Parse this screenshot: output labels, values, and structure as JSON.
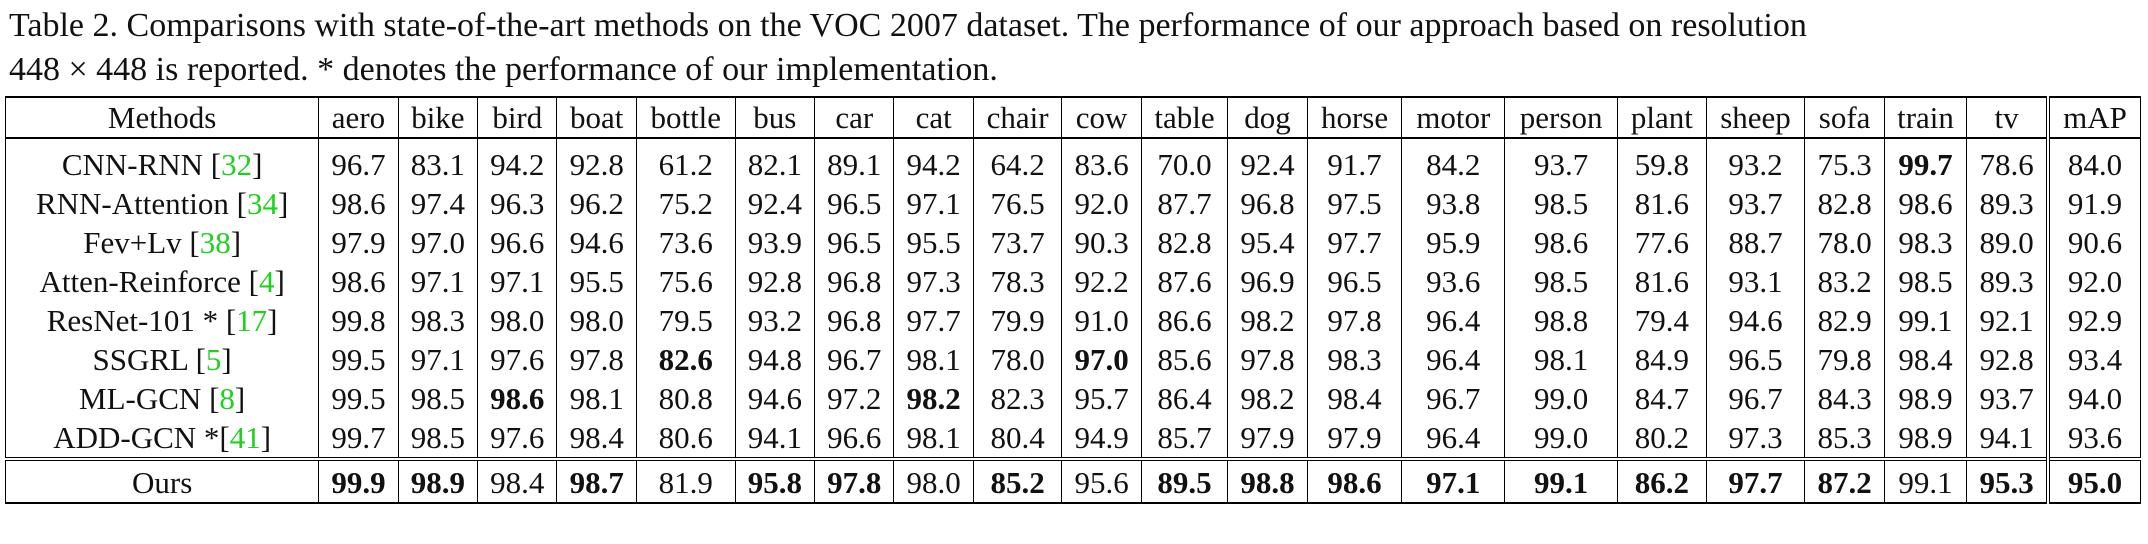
{
  "caption": {
    "line1": "Table 2. Comparisons with state-of-the-art methods on the VOC 2007 dataset.  The performance of our approach based on resolution",
    "line2": "448 × 448 is reported. * denotes the performance of our implementation."
  },
  "headers": [
    "Methods",
    "aero",
    "bike",
    "bird",
    "boat",
    "bottle",
    "bus",
    "car",
    "cat",
    "chair",
    "cow",
    "table",
    "dog",
    "horse",
    "motor",
    "person",
    "plant",
    "sheep",
    "sofa",
    "train",
    "tv",
    "mAP"
  ],
  "rows": [
    {
      "method": "CNN-RNN ",
      "ref": "32",
      "values": [
        "96.7",
        "83.1",
        "94.2",
        "92.8",
        "61.2",
        "82.1",
        "89.1",
        "94.2",
        "64.2",
        "83.6",
        "70.0",
        "92.4",
        "91.7",
        "84.2",
        "93.7",
        "59.8",
        "93.2",
        "75.3",
        "99.7",
        "78.6",
        "84.0"
      ],
      "bold": [
        18
      ]
    },
    {
      "method": "RNN-Attention ",
      "ref": "34",
      "values": [
        "98.6",
        "97.4",
        "96.3",
        "96.2",
        "75.2",
        "92.4",
        "96.5",
        "97.1",
        "76.5",
        "92.0",
        "87.7",
        "96.8",
        "97.5",
        "93.8",
        "98.5",
        "81.6",
        "93.7",
        "82.8",
        "98.6",
        "89.3",
        "91.9"
      ],
      "bold": []
    },
    {
      "method": "Fev+Lv ",
      "ref": "38",
      "values": [
        "97.9",
        "97.0",
        "96.6",
        "94.6",
        "73.6",
        "93.9",
        "96.5",
        "95.5",
        "73.7",
        "90.3",
        "82.8",
        "95.4",
        "97.7",
        "95.9",
        "98.6",
        "77.6",
        "88.7",
        "78.0",
        "98.3",
        "89.0",
        "90.6"
      ],
      "bold": []
    },
    {
      "method": "Atten-Reinforce ",
      "ref": "4",
      "values": [
        "98.6",
        "97.1",
        "97.1",
        "95.5",
        "75.6",
        "92.8",
        "96.8",
        "97.3",
        "78.3",
        "92.2",
        "87.6",
        "96.9",
        "96.5",
        "93.6",
        "98.5",
        "81.6",
        "93.1",
        "83.2",
        "98.5",
        "89.3",
        "92.0"
      ],
      "bold": []
    },
    {
      "method": "ResNet-101 * ",
      "ref": "17",
      "values": [
        "99.8",
        "98.3",
        "98.0",
        "98.0",
        "79.5",
        "93.2",
        "96.8",
        "97.7",
        "79.9",
        "91.0",
        "86.6",
        "98.2",
        "97.8",
        "96.4",
        "98.8",
        "79.4",
        "94.6",
        "82.9",
        "99.1",
        "92.1",
        "92.9"
      ],
      "bold": []
    },
    {
      "method": "SSGRL ",
      "ref": "5",
      "values": [
        "99.5",
        "97.1",
        "97.6",
        "97.8",
        "82.6",
        "94.8",
        "96.7",
        "98.1",
        "78.0",
        "97.0",
        "85.6",
        "97.8",
        "98.3",
        "96.4",
        "98.1",
        "84.9",
        "96.5",
        "79.8",
        "98.4",
        "92.8",
        "93.4"
      ],
      "bold": [
        4,
        9
      ]
    },
    {
      "method": "ML-GCN ",
      "ref": "8",
      "values": [
        "99.5",
        "98.5",
        "98.6",
        "98.1",
        "80.8",
        "94.6",
        "97.2",
        "98.2",
        "82.3",
        "95.7",
        "86.4",
        "98.2",
        "98.4",
        "96.7",
        "99.0",
        "84.7",
        "96.7",
        "84.3",
        "98.9",
        "93.7",
        "94.0"
      ],
      "bold": [
        2,
        7
      ]
    },
    {
      "method": "ADD-GCN *",
      "ref": "41",
      "values": [
        "99.7",
        "98.5",
        "97.6",
        "98.4",
        "80.6",
        "94.1",
        "96.6",
        "98.1",
        "80.4",
        "94.9",
        "85.7",
        "97.9",
        "97.9",
        "96.4",
        "99.0",
        "80.2",
        "97.3",
        "85.3",
        "98.9",
        "94.1",
        "93.6"
      ],
      "bold": []
    }
  ],
  "ours": {
    "method": "Ours",
    "values": [
      "99.9",
      "98.9",
      "98.4",
      "98.7",
      "81.9",
      "95.8",
      "97.8",
      "98.0",
      "85.2",
      "95.6",
      "89.5",
      "98.8",
      "98.6",
      "97.1",
      "99.1",
      "86.2",
      "97.7",
      "87.2",
      "99.1",
      "95.3",
      "95.0"
    ],
    "bold": [
      0,
      1,
      3,
      5,
      6,
      8,
      10,
      11,
      12,
      13,
      14,
      15,
      16,
      17,
      19,
      20
    ]
  }
}
